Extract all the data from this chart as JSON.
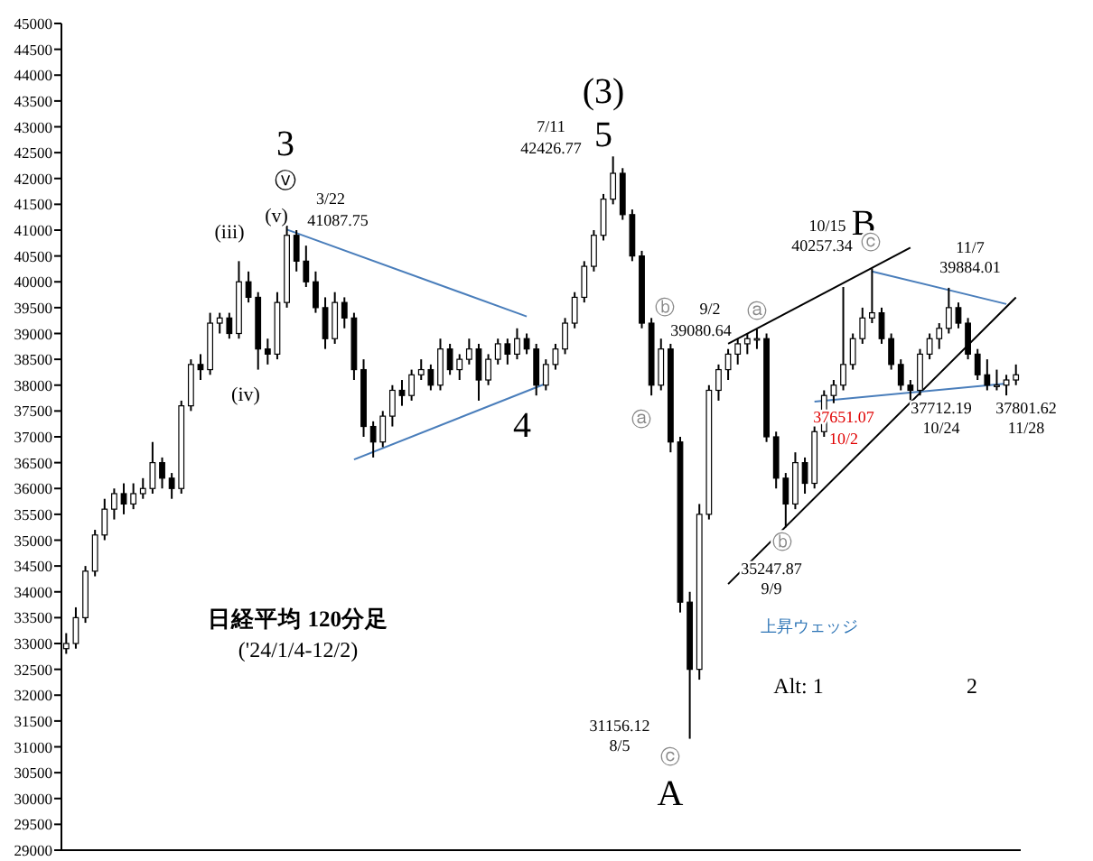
{
  "chart_data": {
    "type": "candlestick",
    "title": "日経平均 120分足",
    "subtitle": "('24/1/4-12/2)",
    "categories": [
      null,
      null,
      null,
      null,
      null,
      null,
      null,
      null,
      null,
      null,
      null,
      null,
      null,
      null,
      null,
      null,
      null,
      null,
      null,
      null,
      null,
      null,
      null,
      null,
      null,
      null,
      null,
      null,
      null,
      null,
      null,
      null,
      null,
      null,
      null,
      null,
      null,
      null,
      null,
      null,
      null,
      null,
      null,
      null,
      null,
      null,
      null,
      null,
      null,
      null,
      null,
      null,
      null,
      null,
      null,
      null,
      null,
      null,
      null,
      null,
      null,
      null,
      null,
      null,
      null,
      null,
      null,
      null,
      null,
      null,
      null,
      null,
      null,
      null,
      null,
      null,
      null,
      null,
      null,
      null,
      null,
      null,
      null,
      null,
      null,
      null,
      null,
      null,
      null,
      null,
      null,
      null,
      null,
      null,
      null,
      null,
      null,
      null,
      null,
      null
    ],
    "ohlc": [
      [
        32900,
        33200,
        32800,
        33000
      ],
      [
        33000,
        33700,
        32900,
        33500
      ],
      [
        33500,
        34500,
        33400,
        34400
      ],
      [
        34400,
        35200,
        34300,
        35100
      ],
      [
        35100,
        35800,
        35000,
        35600
      ],
      [
        35600,
        36000,
        35400,
        35900
      ],
      [
        35900,
        36100,
        35500,
        35700
      ],
      [
        35700,
        36100,
        35600,
        35900
      ],
      [
        35900,
        36200,
        35800,
        36000
      ],
      [
        36000,
        36900,
        35900,
        36500
      ],
      [
        36500,
        36600,
        36000,
        36200
      ],
      [
        36200,
        36300,
        35800,
        36000
      ],
      [
        36000,
        37700,
        35900,
        37600
      ],
      [
        37600,
        38500,
        37500,
        38400
      ],
      [
        38400,
        38600,
        38100,
        38300
      ],
      [
        38300,
        39400,
        38200,
        39200
      ],
      [
        39200,
        39400,
        39000,
        39300
      ],
      [
        39300,
        39400,
        38900,
        39000
      ],
      [
        39000,
        40400,
        38900,
        40000
      ],
      [
        40000,
        40200,
        39600,
        39700
      ],
      [
        39700,
        39800,
        38300,
        38700
      ],
      [
        38700,
        38900,
        38400,
        38600
      ],
      [
        38600,
        39800,
        38500,
        39600
      ],
      [
        39600,
        41087.75,
        39500,
        40900
      ],
      [
        40900,
        41000,
        40200,
        40400
      ],
      [
        40400,
        40700,
        39900,
        40000
      ],
      [
        40000,
        40200,
        39400,
        39500
      ],
      [
        39500,
        39700,
        38700,
        38900
      ],
      [
        38900,
        39800,
        38800,
        39600
      ],
      [
        39600,
        39700,
        39100,
        39300
      ],
      [
        39300,
        39400,
        38100,
        38300
      ],
      [
        38300,
        38500,
        37000,
        37200
      ],
      [
        37200,
        37300,
        36600,
        36900
      ],
      [
        36900,
        37500,
        36800,
        37400
      ],
      [
        37400,
        38000,
        37200,
        37900
      ],
      [
        37900,
        38100,
        37600,
        37800
      ],
      [
        37800,
        38300,
        37700,
        38200
      ],
      [
        38200,
        38500,
        38100,
        38300
      ],
      [
        38300,
        38400,
        37900,
        38000
      ],
      [
        38000,
        38900,
        37900,
        38700
      ],
      [
        38700,
        38800,
        38200,
        38300
      ],
      [
        38300,
        38600,
        38100,
        38500
      ],
      [
        38500,
        38900,
        38400,
        38700
      ],
      [
        38700,
        38800,
        37700,
        38100
      ],
      [
        38100,
        38600,
        38000,
        38500
      ],
      [
        38500,
        38900,
        38400,
        38800
      ],
      [
        38800,
        38900,
        38400,
        38600
      ],
      [
        38600,
        39100,
        38500,
        38900
      ],
      [
        38900,
        39000,
        38600,
        38700
      ],
      [
        38700,
        38800,
        37800,
        38000
      ],
      [
        38000,
        38500,
        37900,
        38400
      ],
      [
        38400,
        38800,
        38300,
        38700
      ],
      [
        38700,
        39300,
        38600,
        39200
      ],
      [
        39200,
        39800,
        39100,
        39700
      ],
      [
        39700,
        40400,
        39600,
        40300
      ],
      [
        40300,
        41000,
        40200,
        40900
      ],
      [
        40900,
        41700,
        40800,
        41600
      ],
      [
        41600,
        42426.77,
        41500,
        42100
      ],
      [
        42100,
        42200,
        41200,
        41300
      ],
      [
        41300,
        41400,
        40400,
        40500
      ],
      [
        40500,
        40600,
        39100,
        39200
      ],
      [
        39200,
        39300,
        37800,
        38000
      ],
      [
        38000,
        38900,
        37900,
        38700
      ],
      [
        38700,
        38800,
        36700,
        36900
      ],
      [
        36900,
        37000,
        33600,
        33800
      ],
      [
        33800,
        34000,
        31156.12,
        32500
      ],
      [
        32500,
        35700,
        32300,
        35500
      ],
      [
        35500,
        38000,
        35400,
        37900
      ],
      [
        37900,
        38400,
        37700,
        38300
      ],
      [
        38300,
        38700,
        38100,
        38600
      ],
      [
        38600,
        38900,
        38400,
        38800
      ],
      [
        38800,
        39000,
        38600,
        38900
      ],
      [
        38900,
        39080.64,
        38700,
        38900
      ],
      [
        38900,
        39000,
        36900,
        37000
      ],
      [
        37000,
        37100,
        36000,
        36200
      ],
      [
        36200,
        36300,
        35247.87,
        35700
      ],
      [
        35700,
        36700,
        35600,
        36500
      ],
      [
        36500,
        36600,
        35900,
        36100
      ],
      [
        36100,
        37200,
        36000,
        37100
      ],
      [
        37100,
        37900,
        37000,
        37800
      ],
      [
        37800,
        38100,
        37651.07,
        38000
      ],
      [
        38000,
        39900,
        37900,
        38400
      ],
      [
        38400,
        39000,
        38300,
        38900
      ],
      [
        38900,
        39500,
        38800,
        39300
      ],
      [
        39300,
        40257.34,
        39200,
        39400
      ],
      [
        39400,
        39500,
        38800,
        38900
      ],
      [
        38900,
        39000,
        38300,
        38400
      ],
      [
        38400,
        38500,
        37900,
        38000
      ],
      [
        38000,
        38100,
        37712.19,
        37900
      ],
      [
        37900,
        38700,
        37800,
        38600
      ],
      [
        38600,
        39000,
        38500,
        38900
      ],
      [
        38900,
        39200,
        38700,
        39100
      ],
      [
        39100,
        39884.01,
        39000,
        39500
      ],
      [
        39500,
        39600,
        39100,
        39200
      ],
      [
        39200,
        39300,
        38500,
        38600
      ],
      [
        38600,
        38700,
        38100,
        38200
      ],
      [
        38200,
        38500,
        37900,
        38000
      ],
      [
        38000,
        38300,
        37900,
        38000
      ],
      [
        38000,
        38200,
        37801.62,
        38100
      ],
      [
        38100,
        38400,
        38000,
        38200
      ]
    ],
    "series": [
      {
        "type": "line",
        "color": "#4a7ebb",
        "values": [
          null,
          null,
          null,
          null,
          null,
          null,
          null,
          null,
          null,
          null,
          null,
          null,
          null,
          null,
          null,
          null,
          null,
          null,
          null,
          null,
          null,
          null,
          null,
          41010,
          null,
          null,
          null,
          null,
          null,
          null,
          null,
          null,
          null,
          null,
          null,
          null,
          null,
          null,
          null,
          null,
          null,
          null,
          null,
          null,
          null,
          null,
          null,
          null,
          39330,
          null,
          null,
          null,
          null,
          null,
          null,
          null,
          null,
          null,
          null,
          null,
          null,
          null,
          null,
          null,
          null,
          null,
          null,
          null,
          null,
          null,
          null,
          null,
          null,
          null,
          null,
          null,
          null,
          null,
          null,
          null,
          null,
          null,
          null,
          null,
          null,
          null,
          null,
          null,
          null,
          null,
          null,
          null,
          null,
          null,
          null,
          null,
          null,
          null,
          null,
          null
        ]
      },
      {
        "type": "line",
        "color": "#4a7ebb",
        "values": [
          null,
          null,
          null,
          null,
          null,
          null,
          null,
          null,
          null,
          null,
          null,
          null,
          null,
          null,
          null,
          null,
          null,
          null,
          null,
          null,
          null,
          null,
          null,
          null,
          null,
          null,
          null,
          null,
          null,
          null,
          36560,
          null,
          null,
          null,
          null,
          null,
          null,
          null,
          null,
          null,
          null,
          null,
          null,
          null,
          null,
          null,
          null,
          null,
          null,
          null,
          38030,
          null,
          null,
          null,
          null,
          null,
          null,
          null,
          null,
          null,
          null,
          null,
          null,
          null,
          null,
          null,
          null,
          null,
          null,
          null,
          null,
          null,
          null,
          null,
          null,
          null,
          null,
          null,
          null,
          null,
          null,
          null,
          null,
          null,
          null,
          null,
          null,
          null,
          null,
          null,
          null,
          null,
          null,
          null,
          null,
          null,
          null,
          null,
          null,
          null
        ]
      },
      {
        "type": "line",
        "color": "#000000",
        "values": [
          null,
          null,
          null,
          null,
          null,
          null,
          null,
          null,
          null,
          null,
          null,
          null,
          null,
          null,
          null,
          null,
          null,
          null,
          null,
          null,
          null,
          null,
          null,
          null,
          null,
          null,
          null,
          null,
          null,
          null,
          null,
          null,
          null,
          null,
          null,
          null,
          null,
          null,
          null,
          null,
          null,
          null,
          null,
          null,
          null,
          null,
          null,
          null,
          null,
          null,
          null,
          null,
          null,
          null,
          null,
          null,
          null,
          null,
          null,
          null,
          null,
          null,
          null,
          null,
          null,
          null,
          null,
          null,
          null,
          38800,
          null,
          null,
          null,
          null,
          null,
          null,
          null,
          null,
          null,
          null,
          null,
          null,
          null,
          null,
          null,
          null,
          null,
          null,
          40660,
          null,
          null,
          null,
          null,
          null,
          null,
          null,
          null,
          null,
          null,
          null
        ]
      },
      {
        "type": "line",
        "color": "#000000",
        "values": [
          null,
          null,
          null,
          null,
          null,
          null,
          null,
          null,
          null,
          null,
          null,
          null,
          null,
          null,
          null,
          null,
          null,
          null,
          null,
          null,
          null,
          null,
          null,
          null,
          null,
          null,
          null,
          null,
          null,
          null,
          null,
          null,
          null,
          null,
          null,
          null,
          null,
          null,
          null,
          null,
          null,
          null,
          null,
          null,
          null,
          null,
          null,
          null,
          null,
          null,
          null,
          null,
          null,
          null,
          null,
          null,
          null,
          null,
          null,
          null,
          null,
          null,
          null,
          null,
          null,
          null,
          null,
          null,
          null,
          34150,
          null,
          null,
          null,
          null,
          null,
          null,
          null,
          null,
          null,
          null,
          null,
          null,
          null,
          null,
          null,
          null,
          null,
          null,
          null,
          null,
          null,
          null,
          null,
          null,
          null,
          null,
          null,
          null,
          null,
          39700
        ]
      },
      {
        "type": "line",
        "color": "#4a7ebb",
        "values": [
          null,
          null,
          null,
          null,
          null,
          null,
          null,
          null,
          null,
          null,
          null,
          null,
          null,
          null,
          null,
          null,
          null,
          null,
          null,
          null,
          null,
          null,
          null,
          null,
          null,
          null,
          null,
          null,
          null,
          null,
          null,
          null,
          null,
          null,
          null,
          null,
          null,
          null,
          null,
          null,
          null,
          null,
          null,
          null,
          null,
          null,
          null,
          null,
          null,
          null,
          null,
          null,
          null,
          null,
          null,
          null,
          null,
          null,
          null,
          null,
          null,
          null,
          null,
          null,
          null,
          null,
          null,
          null,
          null,
          null,
          null,
          null,
          null,
          null,
          null,
          null,
          null,
          null,
          null,
          null,
          null,
          null,
          null,
          null,
          40200,
          null,
          null,
          null,
          null,
          null,
          null,
          null,
          null,
          null,
          null,
          null,
          null,
          null,
          39570,
          null
        ]
      },
      {
        "type": "line",
        "color": "#4a7ebb",
        "values": [
          null,
          null,
          null,
          null,
          null,
          null,
          null,
          null,
          null,
          null,
          null,
          null,
          null,
          null,
          null,
          null,
          null,
          null,
          null,
          null,
          null,
          null,
          null,
          null,
          null,
          null,
          null,
          null,
          null,
          null,
          null,
          null,
          null,
          null,
          null,
          null,
          null,
          null,
          null,
          null,
          null,
          null,
          null,
          null,
          null,
          null,
          null,
          null,
          null,
          null,
          null,
          null,
          null,
          null,
          null,
          null,
          null,
          null,
          null,
          null,
          null,
          null,
          null,
          null,
          null,
          null,
          null,
          null,
          null,
          null,
          null,
          null,
          null,
          null,
          null,
          null,
          null,
          null,
          37680,
          null,
          null,
          null,
          null,
          null,
          null,
          null,
          null,
          null,
          null,
          null,
          null,
          null,
          null,
          null,
          null,
          null,
          null,
          null,
          38030,
          null
        ]
      }
    ],
    "ylim": [
      29000,
      45000
    ],
    "yticks": [
      29000,
      29500,
      30000,
      30500,
      31000,
      31500,
      32000,
      32500,
      33000,
      33500,
      34000,
      34500,
      35000,
      35500,
      36000,
      36500,
      37000,
      37500,
      38000,
      38500,
      39000,
      39500,
      40000,
      40500,
      41000,
      41500,
      42000,
      42500,
      43000,
      43500,
      44000,
      44500,
      45000
    ],
    "tick_labels": "y",
    "annotations": [
      "3",
      "ⓥ",
      "(v)",
      "(iii)",
      "(iv)",
      "3/22",
      "41087.75",
      "7/11",
      "42426.77",
      "(3)",
      "5",
      "4",
      "ⓑ",
      "ⓐ",
      "9/2",
      "39080.64",
      "ⓐ",
      "B",
      "10/15",
      "40257.34",
      "ⓒ",
      "11/7",
      "39884.01",
      "ⓑ",
      "35247.87",
      "9/9",
      "37651.07",
      "10/2",
      "37712.19",
      "10/24",
      "37801.62",
      "11/28",
      "31156.12",
      "8/5",
      "ⓒ",
      "A",
      "上昇ウェッジ",
      "Alt: 1",
      "2"
    ]
  }
}
